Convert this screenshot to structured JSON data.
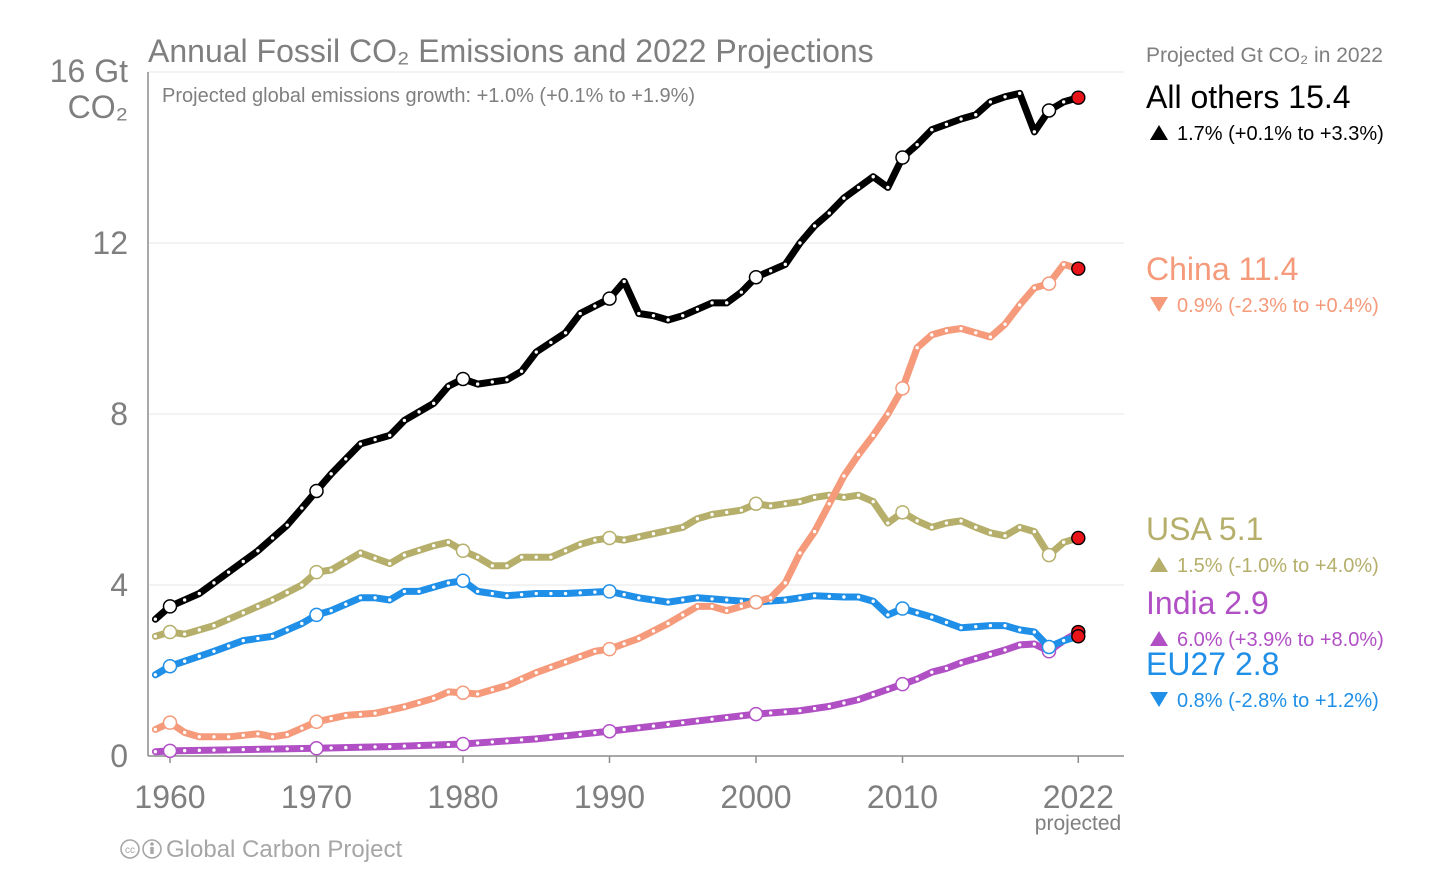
{
  "chart_data": {
    "type": "line",
    "title": "Annual Fossil CO₂ Emissions and 2022 Projections",
    "subtitle": "Projected global emissions growth: +1.0% (+0.1% to +1.9%)",
    "ylabel": "16 Gt CO₂",
    "ylabel_line1": "16 Gt",
    "ylabel_line2": "CO₂",
    "ylim": [
      0,
      16
    ],
    "xlim": [
      1959,
      2022
    ],
    "y_ticks": [
      0,
      4,
      8,
      12
    ],
    "x_ticks": [
      1960,
      1970,
      1980,
      1990,
      2000,
      2010,
      2022
    ],
    "x_tick_labels": [
      "1960",
      "1970",
      "1980",
      "1990",
      "2000",
      "2010",
      "2022"
    ],
    "projected_label": "projected",
    "legend_header": "Projected Gt CO₂ in 2022",
    "grid": true,
    "legend_position": "right",
    "credit": "Global Carbon Project",
    "series": [
      {
        "name": "All others",
        "projection": "15.4",
        "growth": "1.7% (+0.1% to +3.3%)",
        "direction": "up",
        "color": "#000000",
        "years": [
          1959,
          1960,
          1962,
          1964,
          1966,
          1968,
          1969,
          1970,
          1971,
          1972,
          1973,
          1975,
          1976,
          1978,
          1979,
          1980,
          1981,
          1983,
          1984,
          1985,
          1987,
          1988,
          1990,
          1991,
          1992,
          1993,
          1994,
          1995,
          1997,
          1998,
          1999,
          2000,
          2001,
          2002,
          2003,
          2004,
          2005,
          2006,
          2008,
          2009,
          2010,
          2011,
          2012,
          2014,
          2015,
          2016,
          2017,
          2018,
          2019,
          2020,
          2021,
          2022
        ],
        "values": [
          3.2,
          3.5,
          3.8,
          4.3,
          4.8,
          5.4,
          5.8,
          6.2,
          6.6,
          6.95,
          7.3,
          7.5,
          7.85,
          8.25,
          8.65,
          8.82,
          8.7,
          8.8,
          9.0,
          9.45,
          9.9,
          10.35,
          10.7,
          11.1,
          10.35,
          10.3,
          10.2,
          10.3,
          10.6,
          10.6,
          10.85,
          11.2,
          11.35,
          11.5,
          12.0,
          12.4,
          12.7,
          13.05,
          13.55,
          13.3,
          14.0,
          14.3,
          14.65,
          14.9,
          15.0,
          15.3,
          15.42,
          15.5,
          14.6,
          15.1,
          15.3,
          15.4
        ]
      },
      {
        "name": "China",
        "projection": "11.4",
        "growth": "0.9% (-2.3% to +0.4%)",
        "direction": "down",
        "color": "#f59a7a",
        "years": [
          1959,
          1960,
          1961,
          1962,
          1964,
          1966,
          1967,
          1968,
          1969,
          1970,
          1972,
          1974,
          1976,
          1978,
          1979,
          1980,
          1981,
          1983,
          1985,
          1987,
          1989,
          1990,
          1992,
          1994,
          1996,
          1997,
          1998,
          2000,
          2001,
          2002,
          2003,
          2004,
          2005,
          2006,
          2007,
          2008,
          2009,
          2010,
          2011,
          2012,
          2013,
          2014,
          2015,
          2016,
          2017,
          2018,
          2019,
          2020,
          2021,
          2022
        ],
        "values": [
          0.62,
          0.78,
          0.55,
          0.45,
          0.45,
          0.52,
          0.45,
          0.5,
          0.65,
          0.8,
          0.95,
          1.0,
          1.15,
          1.35,
          1.5,
          1.48,
          1.45,
          1.65,
          1.95,
          2.2,
          2.45,
          2.5,
          2.75,
          3.1,
          3.5,
          3.5,
          3.4,
          3.6,
          3.7,
          4.05,
          4.75,
          5.25,
          5.9,
          6.55,
          7.05,
          7.5,
          8.0,
          8.6,
          9.55,
          9.85,
          9.95,
          10.0,
          9.9,
          9.8,
          10.1,
          10.55,
          10.95,
          11.05,
          11.5,
          11.4
        ]
      },
      {
        "name": "USA",
        "projection": "5.1",
        "growth": "1.5% (-1.0% to +4.0%)",
        "direction": "up",
        "color": "#b5af6b",
        "years": [
          1959,
          1960,
          1961,
          1963,
          1965,
          1967,
          1969,
          1970,
          1971,
          1973,
          1975,
          1976,
          1978,
          1979,
          1980,
          1981,
          1982,
          1983,
          1984,
          1986,
          1988,
          1989,
          1990,
          1991,
          1993,
          1995,
          1996,
          1997,
          1999,
          2000,
          2001,
          2003,
          2004,
          2005,
          2006,
          2007,
          2008,
          2009,
          2010,
          2011,
          2012,
          2013,
          2014,
          2015,
          2016,
          2017,
          2018,
          2019,
          2020,
          2021,
          2022
        ],
        "values": [
          2.8,
          2.9,
          2.85,
          3.05,
          3.35,
          3.65,
          4.0,
          4.3,
          4.35,
          4.75,
          4.5,
          4.7,
          4.92,
          5.0,
          4.8,
          4.65,
          4.45,
          4.45,
          4.65,
          4.65,
          4.95,
          5.05,
          5.1,
          5.05,
          5.2,
          5.35,
          5.55,
          5.65,
          5.75,
          5.9,
          5.85,
          5.95,
          6.05,
          6.1,
          6.05,
          6.1,
          5.95,
          5.45,
          5.7,
          5.5,
          5.35,
          5.45,
          5.5,
          5.35,
          5.22,
          5.15,
          5.35,
          5.25,
          4.7,
          5.0,
          5.1
        ]
      },
      {
        "name": "India",
        "projection": "2.9",
        "growth": "6.0% (+3.9% to +8.0%)",
        "direction": "up",
        "color": "#b14fc5",
        "years": [
          1959,
          1960,
          1965,
          1970,
          1975,
          1980,
          1985,
          1990,
          1995,
          2000,
          2003,
          2005,
          2007,
          2008,
          2009,
          2010,
          2011,
          2012,
          2013,
          2014,
          2015,
          2016,
          2017,
          2018,
          2019,
          2020,
          2021,
          2022
        ],
        "values": [
          0.1,
          0.12,
          0.15,
          0.18,
          0.22,
          0.28,
          0.4,
          0.58,
          0.78,
          0.98,
          1.06,
          1.16,
          1.32,
          1.44,
          1.56,
          1.68,
          1.8,
          1.96,
          2.05,
          2.18,
          2.28,
          2.38,
          2.48,
          2.6,
          2.62,
          2.45,
          2.7,
          2.9
        ]
      },
      {
        "name": "EU27",
        "projection": "2.8",
        "growth": "0.8% (-2.8% to +1.2%)",
        "direction": "down",
        "color": "#1f8fe8",
        "years": [
          1959,
          1960,
          1963,
          1965,
          1967,
          1969,
          1970,
          1971,
          1973,
          1974,
          1975,
          1976,
          1977,
          1979,
          1980,
          1981,
          1983,
          1985,
          1987,
          1990,
          1992,
          1994,
          1996,
          1998,
          2000,
          2002,
          2004,
          2006,
          2007,
          2008,
          2009,
          2010,
          2012,
          2014,
          2016,
          2017,
          2018,
          2019,
          2020,
          2021,
          2022
        ],
        "values": [
          1.9,
          2.1,
          2.45,
          2.7,
          2.8,
          3.1,
          3.3,
          3.4,
          3.7,
          3.7,
          3.65,
          3.85,
          3.85,
          4.05,
          4.1,
          3.85,
          3.75,
          3.8,
          3.8,
          3.85,
          3.7,
          3.6,
          3.7,
          3.65,
          3.6,
          3.65,
          3.75,
          3.72,
          3.72,
          3.62,
          3.3,
          3.45,
          3.25,
          3.0,
          3.05,
          3.05,
          2.95,
          2.9,
          2.55,
          2.7,
          2.8
        ]
      }
    ]
  }
}
